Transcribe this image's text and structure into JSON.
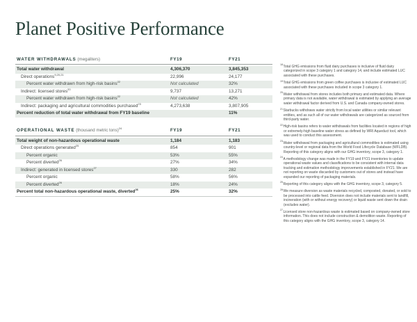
{
  "page": {
    "title": "Planet Positive Performance"
  },
  "colors": {
    "heading_green": "#28433b",
    "table_header_green": "#1f3933",
    "row_shade": "#e7ece8",
    "body_text": "#454a47"
  },
  "tables": [
    {
      "id": "water-withdrawals",
      "header": {
        "label": "WATER WITHDRAWALS",
        "unit": "(megaliters)",
        "sup": "",
        "col1": "FY19",
        "col2": "FY21"
      },
      "rows": [
        {
          "label": "Total water withdrawal",
          "sup": "",
          "fy19": "4,306,370",
          "fy21": "3,845,353",
          "bold": true,
          "shaded": true,
          "indent": 0
        },
        {
          "label": "Direct operations",
          "sup": "9,20,21",
          "fy19": "22,996",
          "fy21": "24,177",
          "bold": false,
          "shaded": false,
          "indent": 1
        },
        {
          "label": "Percent water withdrawn from high-risk basins",
          "sup": "22",
          "fy19": "Not calculated",
          "fy21": "32%",
          "bold": false,
          "shaded": true,
          "indent": 2,
          "fy19_italic": true
        },
        {
          "label": "Indirect: licensed stores",
          "sup": "20",
          "fy19": "9,737",
          "fy21": "13,271",
          "bold": false,
          "shaded": false,
          "indent": 1
        },
        {
          "label": "Percent water withdrawn from high-risk basins",
          "sup": "22",
          "fy19": "Not calculated",
          "fy21": "42%",
          "bold": false,
          "shaded": true,
          "indent": 2,
          "fy19_italic": true
        },
        {
          "label": "Indirect: packaging and agricultural commodities purchased",
          "sup": "23",
          "fy19": "4,273,638",
          "fy21": "3,807,905",
          "bold": false,
          "shaded": false,
          "indent": 1
        },
        {
          "label": "Percent reduction of total water withdrawal from FY19 baseline",
          "sup": "",
          "fy19": "",
          "fy21": "11%",
          "bold": true,
          "shaded": true,
          "indent": 0
        }
      ]
    },
    {
      "id": "operational-waste",
      "header": {
        "label": "OPERATIONAL WASTE",
        "unit": "(thousand metric tons)",
        "sup": "24",
        "col1": "FY19",
        "col2": "FY21"
      },
      "rows": [
        {
          "label": "Total weight of non-hazardous operational waste",
          "sup": "",
          "fy19": "1,184",
          "fy21": "1,183",
          "bold": true,
          "shaded": true,
          "indent": 0
        },
        {
          "label": "Direct operations generated",
          "sup": "25",
          "fy19": "854",
          "fy21": "901",
          "bold": false,
          "shaded": false,
          "indent": 1
        },
        {
          "label": "Percent organic",
          "sup": "",
          "fy19": "53%",
          "fy21": "55%",
          "bold": false,
          "shaded": true,
          "indent": 2
        },
        {
          "label": "Percent diverted",
          "sup": "26",
          "fy19": "27%",
          "fy21": "34%",
          "bold": false,
          "shaded": false,
          "indent": 2
        },
        {
          "label": "Indirect: generated in licensed stores",
          "sup": "27",
          "fy19": "330",
          "fy21": "282",
          "bold": false,
          "shaded": true,
          "indent": 1
        },
        {
          "label": "Percent organic",
          "sup": "",
          "fy19": "58%",
          "fy21": "56%",
          "bold": false,
          "shaded": false,
          "indent": 2
        },
        {
          "label": "Percent diverted",
          "sup": "26",
          "fy19": "18%",
          "fy21": "24%",
          "bold": false,
          "shaded": true,
          "indent": 2
        },
        {
          "label": "Percent total non-hazardous operational waste, diverted",
          "sup": "26",
          "fy19": "25%",
          "fy21": "32%",
          "bold": true,
          "shaded": false,
          "indent": 0
        }
      ]
    }
  ],
  "footnotes": [
    {
      "num": "18",
      "text": "Total GHG emissions from fluid dairy purchases is inclusive of fluid dairy categorized in scope 3 category 1 and category 14, and include estimated LUC associated with these purchases."
    },
    {
      "num": "19",
      "text": "Total GHG emissions from green coffee purchases is inclusive of estimated LUC associated with these purchases included in scope 3 category 1."
    },
    {
      "num": "20",
      "text": "Water withdrawal from stores includes both primary and estimated data. Where primary data is not available, water withdrawal is estimated by applying an average water withdrawal factor derived from U.S. and Canada company-owned stores."
    },
    {
      "num": "21",
      "text": "Starbucks withdraws water strictly from local water utilities or similar relevant entities, and as such all of our water withdrawals are categorized as sourced from third-party water."
    },
    {
      "num": "22",
      "text": "High-risk basins refers to water withdrawals from facilities located in regions of high or extremely-high baseline water stress as defined by WRI Aqueduct tool, which was used to conduct this assessment."
    },
    {
      "num": "23",
      "text": "Water withdrawal from packaging and agricultural commodities is estimated using country-level or regional data from the World Food Lifecycle Database (WFLDB). Reporting of this category aligns with our GHG inventory, scope 3, category 1."
    },
    {
      "num": "24",
      "text": "A methodology change was made in the FY19 and FY21 inventories to update operational waste values and classifications to be consistent with internal data tracking and estimation methodology improvements established in FY21. We are not reporting on waste discarded by customers out of stores and instead have expanded our reporting of packaging materials."
    },
    {
      "num": "25",
      "text": "Reporting of this category aligns with the GHG inventory, scope 3, category 5."
    },
    {
      "num": "26",
      "text": "We measure diversion as waste materials recycled, composted, donated, or sold to be processed into cattle feed. Diversion does not include materials sent to landfill, incineration (with or without energy recovery) or liquid waste sent down the drain (excludes water)."
    },
    {
      "num": "27",
      "text": "Licensed store non-hazardous waste is estimated based on company-owned store information. This does not include construction & demolition waste. Reporting of this category aligns with the GHG inventory, scope 3, category 14."
    }
  ]
}
